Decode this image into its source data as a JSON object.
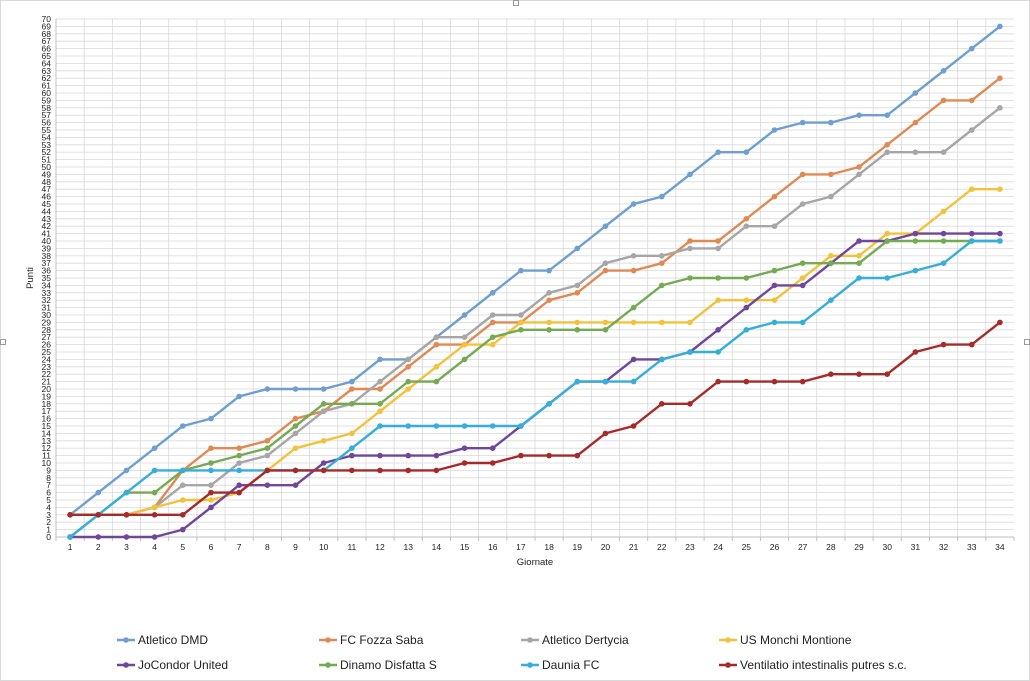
{
  "chart_data": {
    "type": "line",
    "title": "",
    "xlabel": "Giornate",
    "ylabel": "Punti",
    "xlim": [
      1,
      34
    ],
    "ylim": [
      0,
      70
    ],
    "grid": true,
    "legend_position": "bottom",
    "x": [
      1,
      2,
      3,
      4,
      5,
      6,
      7,
      8,
      9,
      10,
      11,
      12,
      13,
      14,
      15,
      16,
      17,
      18,
      19,
      20,
      21,
      22,
      23,
      24,
      25,
      26,
      27,
      28,
      29,
      30,
      31,
      32,
      33,
      34
    ],
    "series": [
      {
        "name": "Atletico DMD",
        "color": "#6f9fcf",
        "values": [
          3,
          6,
          9,
          12,
          15,
          16,
          19,
          20,
          20,
          20,
          21,
          24,
          24,
          27,
          30,
          33,
          36,
          36,
          39,
          42,
          45,
          46,
          49,
          52,
          52,
          55,
          56,
          56,
          57,
          57,
          60,
          63,
          66,
          69
        ]
      },
      {
        "name": "FC Fozza Saba",
        "color": "#e08a53",
        "values": [
          3,
          3,
          3,
          4,
          9,
          12,
          12,
          13,
          16,
          17,
          20,
          20,
          23,
          26,
          26,
          29,
          29,
          32,
          33,
          36,
          36,
          37,
          40,
          40,
          43,
          46,
          49,
          49,
          50,
          53,
          56,
          59,
          59,
          62
        ]
      },
      {
        "name": "Atletico Dertycia",
        "color": "#a6a6a6",
        "values": [
          0,
          3,
          3,
          4,
          7,
          7,
          10,
          11,
          14,
          17,
          18,
          21,
          24,
          27,
          27,
          30,
          30,
          33,
          34,
          37,
          38,
          38,
          39,
          39,
          42,
          42,
          45,
          46,
          49,
          52,
          52,
          52,
          55,
          58
        ]
      },
      {
        "name": "US Monchi Montione",
        "color": "#f3c23c",
        "values": [
          3,
          3,
          3,
          4,
          5,
          5,
          6,
          9,
          12,
          13,
          14,
          17,
          20,
          23,
          26,
          26,
          29,
          29,
          29,
          29,
          29,
          29,
          29,
          32,
          32,
          32,
          35,
          38,
          38,
          41,
          41,
          44,
          47,
          47
        ]
      },
      {
        "name": "JoCondor United",
        "color": "#70469a",
        "values": [
          0,
          0,
          0,
          0,
          1,
          4,
          7,
          7,
          7,
          10,
          11,
          11,
          11,
          11,
          12,
          12,
          15,
          18,
          21,
          21,
          24,
          24,
          25,
          28,
          31,
          34,
          34,
          37,
          40,
          40,
          41,
          41,
          41,
          41
        ]
      },
      {
        "name": "Dinamo Disfatta S",
        "color": "#74aa52",
        "values": [
          3,
          3,
          6,
          6,
          9,
          10,
          11,
          12,
          15,
          18,
          18,
          18,
          21,
          21,
          24,
          27,
          28,
          28,
          28,
          28,
          31,
          34,
          35,
          35,
          35,
          36,
          37,
          37,
          37,
          40,
          40,
          40,
          40,
          40
        ]
      },
      {
        "name": "Daunia FC",
        "color": "#36aedb",
        "values": [
          0,
          3,
          6,
          9,
          9,
          9,
          9,
          9,
          9,
          9,
          12,
          15,
          15,
          15,
          15,
          15,
          15,
          18,
          21,
          21,
          21,
          24,
          25,
          25,
          28,
          29,
          29,
          32,
          35,
          35,
          36,
          37,
          40,
          40
        ]
      },
      {
        "name": "Ventilatio intestinalis putres s.c.",
        "color": "#a52a2a",
        "values": [
          3,
          3,
          3,
          3,
          3,
          6,
          6,
          9,
          9,
          9,
          9,
          9,
          9,
          9,
          10,
          10,
          11,
          11,
          11,
          14,
          15,
          18,
          18,
          21,
          21,
          21,
          21,
          22,
          22,
          22,
          25,
          26,
          26,
          29
        ]
      }
    ]
  }
}
